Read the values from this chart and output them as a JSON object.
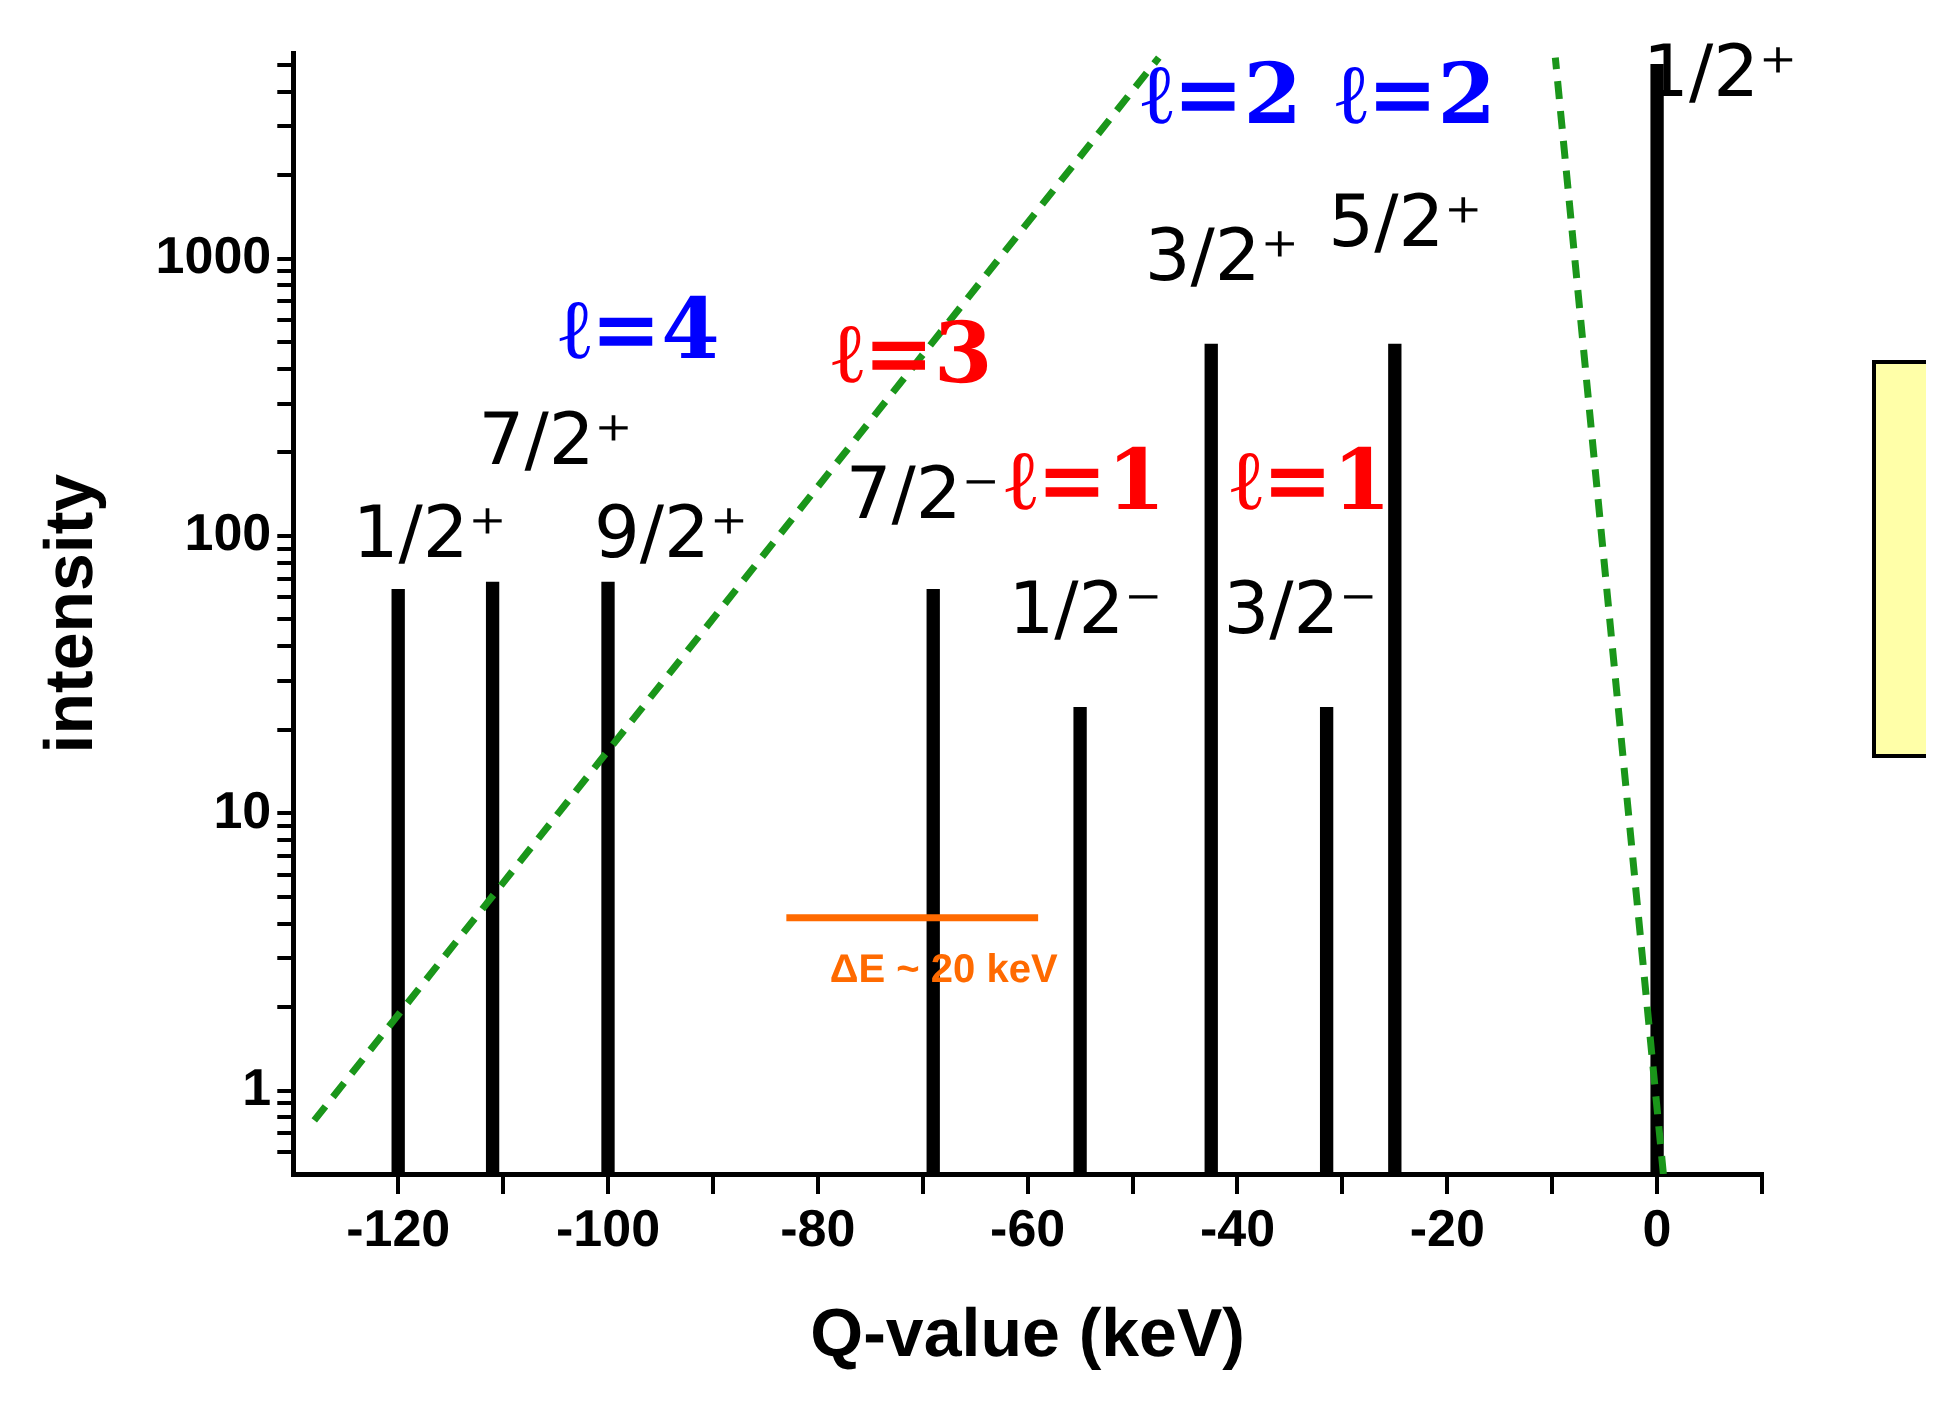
{
  "chart_data": {
    "type": "bar",
    "xlabel": "Q-value (keV)",
    "ylabel": "intensity",
    "log": "y",
    "marker": "none",
    "xlim": [
      -130,
      10
    ],
    "xticks": [
      -120,
      {
        "value": -110,
        "label": null
      },
      -100,
      {
        "value": -90,
        "label": null
      },
      -80,
      {
        "value": -70,
        "label": null
      },
      -60,
      {
        "value": -50,
        "label": null
      },
      -40,
      {
        "value": -30,
        "label": null
      },
      -20,
      {
        "value": -10,
        "label": null
      },
      0,
      {
        "value": 10,
        "label": null
      }
    ],
    "ylim": [
      0.5,
      5500
    ],
    "yticks": [
      {
        "value": 0.6,
        "label": null
      },
      {
        "value": 0.7,
        "label": null
      },
      {
        "value": 0.8,
        "label": null
      },
      {
        "value": 0.9,
        "label": null
      },
      1,
      {
        "value": 2,
        "label": null
      },
      {
        "value": 3,
        "label": null
      },
      {
        "value": 4,
        "label": null
      },
      {
        "value": 5,
        "label": null
      },
      {
        "value": 6,
        "label": null
      },
      {
        "value": 7,
        "label": null
      },
      {
        "value": 8,
        "label": null
      },
      {
        "value": 9,
        "label": null
      },
      10,
      {
        "value": 20,
        "label": null
      },
      {
        "value": 30,
        "label": null
      },
      {
        "value": 40,
        "label": null
      },
      {
        "value": 50,
        "label": null
      },
      {
        "value": 60,
        "label": null
      },
      {
        "value": 70,
        "label": null
      },
      {
        "value": 80,
        "label": null
      },
      {
        "value": 90,
        "label": null
      },
      100,
      {
        "value": 200,
        "label": null
      },
      {
        "value": 300,
        "label": null
      },
      {
        "value": 400,
        "label": null
      },
      {
        "value": 500,
        "label": null
      },
      {
        "value": 600,
        "label": null
      },
      {
        "value": 700,
        "label": null
      },
      {
        "value": 800,
        "label": null
      },
      {
        "value": 900,
        "label": null
      },
      1000,
      {
        "value": 2000,
        "label": null
      },
      {
        "value": 3000,
        "label": null
      },
      {
        "value": 4000,
        "label": null
      },
      {
        "value": 5000,
        "label": null
      }
    ],
    "series": [
      {
        "color": "#000000",
        "x": [
          -120,
          -111,
          -100,
          -69,
          -55,
          -42.5,
          -31.5,
          -25,
          0
        ],
        "values": [
          64,
          68,
          68,
          64,
          24,
          490,
          24,
          490,
          5000
        ]
      },
      {
        "type": "line",
        "color": "#1a961a",
        "line_style": "dashed",
        "x": [
          -128,
          -47.5
        ],
        "values": [
          0.78,
          5300
        ]
      },
      {
        "type": "line",
        "color": "#1a961a",
        "line_style": "dashed",
        "x": [
          0.6,
          -9.7
        ],
        "values": [
          0.5,
          5300
        ]
      },
      {
        "type": "line",
        "color": "#ff6a00",
        "x": [
          -83,
          -59
        ],
        "values": [
          4.2,
          4.2
        ]
      }
    ],
    "annotations": [
      "1/2⁺",
      "7/2⁺",
      "9/2⁺",
      "7/2⁻",
      "1/2⁻",
      "3/2⁻",
      "3/2⁺",
      "5/2⁺",
      "1/2⁺",
      "ℓ=4",
      "ℓ=3",
      "ℓ=1",
      "ℓ=1",
      "ℓ=2",
      "ℓ=2",
      "ΔE ~ 20 keV"
    ]
  }
}
